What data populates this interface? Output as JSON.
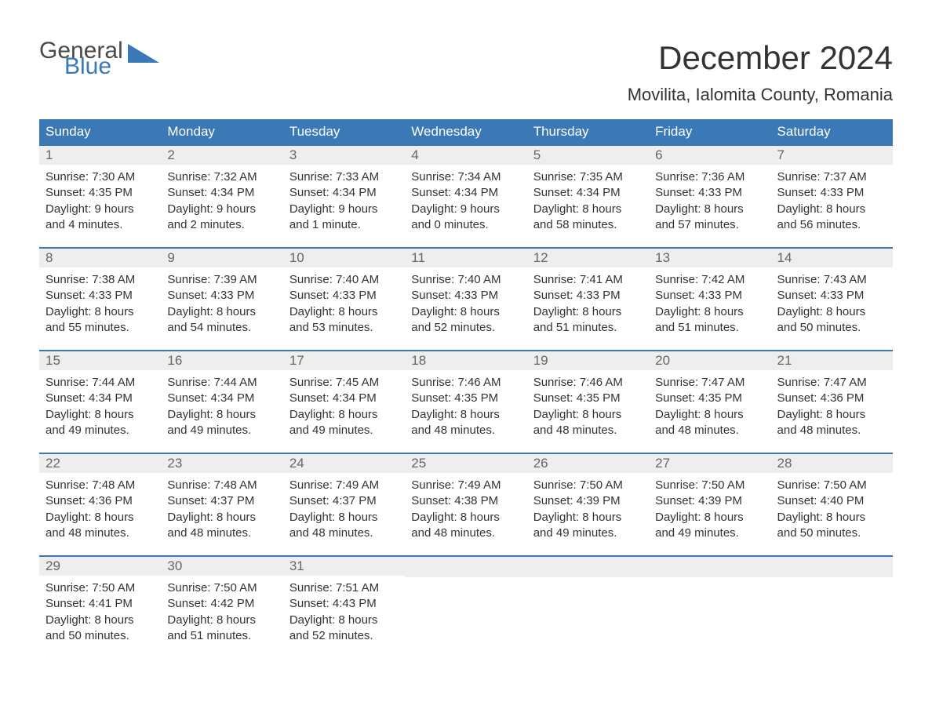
{
  "logo": {
    "general": "General",
    "blue": "Blue"
  },
  "title": "December 2024",
  "location": "Movilita, Ialomita County, Romania",
  "colors": {
    "header_bg": "#3a78b6",
    "header_text": "#ffffff",
    "daynum_bg": "#eeeeee",
    "daynum_text": "#666666",
    "body_text": "#333333",
    "week_border": "#3a78b6",
    "page_bg": "#ffffff",
    "logo_gray": "#4a4a4a",
    "logo_blue": "#3a78b6"
  },
  "typography": {
    "title_fontsize": 42,
    "location_fontsize": 22,
    "header_fontsize": 17,
    "daynum_fontsize": 17,
    "detail_fontsize": 15,
    "font_family": "Arial"
  },
  "layout": {
    "columns": 7,
    "weeks": 5,
    "aspect": "1188x918"
  },
  "weekdays": [
    "Sunday",
    "Monday",
    "Tuesday",
    "Wednesday",
    "Thursday",
    "Friday",
    "Saturday"
  ],
  "weeks": [
    [
      {
        "num": "1",
        "sunrise": "Sunrise: 7:30 AM",
        "sunset": "Sunset: 4:35 PM",
        "day1": "Daylight: 9 hours",
        "day2": "and 4 minutes."
      },
      {
        "num": "2",
        "sunrise": "Sunrise: 7:32 AM",
        "sunset": "Sunset: 4:34 PM",
        "day1": "Daylight: 9 hours",
        "day2": "and 2 minutes."
      },
      {
        "num": "3",
        "sunrise": "Sunrise: 7:33 AM",
        "sunset": "Sunset: 4:34 PM",
        "day1": "Daylight: 9 hours",
        "day2": "and 1 minute."
      },
      {
        "num": "4",
        "sunrise": "Sunrise: 7:34 AM",
        "sunset": "Sunset: 4:34 PM",
        "day1": "Daylight: 9 hours",
        "day2": "and 0 minutes."
      },
      {
        "num": "5",
        "sunrise": "Sunrise: 7:35 AM",
        "sunset": "Sunset: 4:34 PM",
        "day1": "Daylight: 8 hours",
        "day2": "and 58 minutes."
      },
      {
        "num": "6",
        "sunrise": "Sunrise: 7:36 AM",
        "sunset": "Sunset: 4:33 PM",
        "day1": "Daylight: 8 hours",
        "day2": "and 57 minutes."
      },
      {
        "num": "7",
        "sunrise": "Sunrise: 7:37 AM",
        "sunset": "Sunset: 4:33 PM",
        "day1": "Daylight: 8 hours",
        "day2": "and 56 minutes."
      }
    ],
    [
      {
        "num": "8",
        "sunrise": "Sunrise: 7:38 AM",
        "sunset": "Sunset: 4:33 PM",
        "day1": "Daylight: 8 hours",
        "day2": "and 55 minutes."
      },
      {
        "num": "9",
        "sunrise": "Sunrise: 7:39 AM",
        "sunset": "Sunset: 4:33 PM",
        "day1": "Daylight: 8 hours",
        "day2": "and 54 minutes."
      },
      {
        "num": "10",
        "sunrise": "Sunrise: 7:40 AM",
        "sunset": "Sunset: 4:33 PM",
        "day1": "Daylight: 8 hours",
        "day2": "and 53 minutes."
      },
      {
        "num": "11",
        "sunrise": "Sunrise: 7:40 AM",
        "sunset": "Sunset: 4:33 PM",
        "day1": "Daylight: 8 hours",
        "day2": "and 52 minutes."
      },
      {
        "num": "12",
        "sunrise": "Sunrise: 7:41 AM",
        "sunset": "Sunset: 4:33 PM",
        "day1": "Daylight: 8 hours",
        "day2": "and 51 minutes."
      },
      {
        "num": "13",
        "sunrise": "Sunrise: 7:42 AM",
        "sunset": "Sunset: 4:33 PM",
        "day1": "Daylight: 8 hours",
        "day2": "and 51 minutes."
      },
      {
        "num": "14",
        "sunrise": "Sunrise: 7:43 AM",
        "sunset": "Sunset: 4:33 PM",
        "day1": "Daylight: 8 hours",
        "day2": "and 50 minutes."
      }
    ],
    [
      {
        "num": "15",
        "sunrise": "Sunrise: 7:44 AM",
        "sunset": "Sunset: 4:34 PM",
        "day1": "Daylight: 8 hours",
        "day2": "and 49 minutes."
      },
      {
        "num": "16",
        "sunrise": "Sunrise: 7:44 AM",
        "sunset": "Sunset: 4:34 PM",
        "day1": "Daylight: 8 hours",
        "day2": "and 49 minutes."
      },
      {
        "num": "17",
        "sunrise": "Sunrise: 7:45 AM",
        "sunset": "Sunset: 4:34 PM",
        "day1": "Daylight: 8 hours",
        "day2": "and 49 minutes."
      },
      {
        "num": "18",
        "sunrise": "Sunrise: 7:46 AM",
        "sunset": "Sunset: 4:35 PM",
        "day1": "Daylight: 8 hours",
        "day2": "and 48 minutes."
      },
      {
        "num": "19",
        "sunrise": "Sunrise: 7:46 AM",
        "sunset": "Sunset: 4:35 PM",
        "day1": "Daylight: 8 hours",
        "day2": "and 48 minutes."
      },
      {
        "num": "20",
        "sunrise": "Sunrise: 7:47 AM",
        "sunset": "Sunset: 4:35 PM",
        "day1": "Daylight: 8 hours",
        "day2": "and 48 minutes."
      },
      {
        "num": "21",
        "sunrise": "Sunrise: 7:47 AM",
        "sunset": "Sunset: 4:36 PM",
        "day1": "Daylight: 8 hours",
        "day2": "and 48 minutes."
      }
    ],
    [
      {
        "num": "22",
        "sunrise": "Sunrise: 7:48 AM",
        "sunset": "Sunset: 4:36 PM",
        "day1": "Daylight: 8 hours",
        "day2": "and 48 minutes."
      },
      {
        "num": "23",
        "sunrise": "Sunrise: 7:48 AM",
        "sunset": "Sunset: 4:37 PM",
        "day1": "Daylight: 8 hours",
        "day2": "and 48 minutes."
      },
      {
        "num": "24",
        "sunrise": "Sunrise: 7:49 AM",
        "sunset": "Sunset: 4:37 PM",
        "day1": "Daylight: 8 hours",
        "day2": "and 48 minutes."
      },
      {
        "num": "25",
        "sunrise": "Sunrise: 7:49 AM",
        "sunset": "Sunset: 4:38 PM",
        "day1": "Daylight: 8 hours",
        "day2": "and 48 minutes."
      },
      {
        "num": "26",
        "sunrise": "Sunrise: 7:50 AM",
        "sunset": "Sunset: 4:39 PM",
        "day1": "Daylight: 8 hours",
        "day2": "and 49 minutes."
      },
      {
        "num": "27",
        "sunrise": "Sunrise: 7:50 AM",
        "sunset": "Sunset: 4:39 PM",
        "day1": "Daylight: 8 hours",
        "day2": "and 49 minutes."
      },
      {
        "num": "28",
        "sunrise": "Sunrise: 7:50 AM",
        "sunset": "Sunset: 4:40 PM",
        "day1": "Daylight: 8 hours",
        "day2": "and 50 minutes."
      }
    ],
    [
      {
        "num": "29",
        "sunrise": "Sunrise: 7:50 AM",
        "sunset": "Sunset: 4:41 PM",
        "day1": "Daylight: 8 hours",
        "day2": "and 50 minutes."
      },
      {
        "num": "30",
        "sunrise": "Sunrise: 7:50 AM",
        "sunset": "Sunset: 4:42 PM",
        "day1": "Daylight: 8 hours",
        "day2": "and 51 minutes."
      },
      {
        "num": "31",
        "sunrise": "Sunrise: 7:51 AM",
        "sunset": "Sunset: 4:43 PM",
        "day1": "Daylight: 8 hours",
        "day2": "and 52 minutes."
      },
      {
        "empty": true
      },
      {
        "empty": true
      },
      {
        "empty": true
      },
      {
        "empty": true
      }
    ]
  ]
}
